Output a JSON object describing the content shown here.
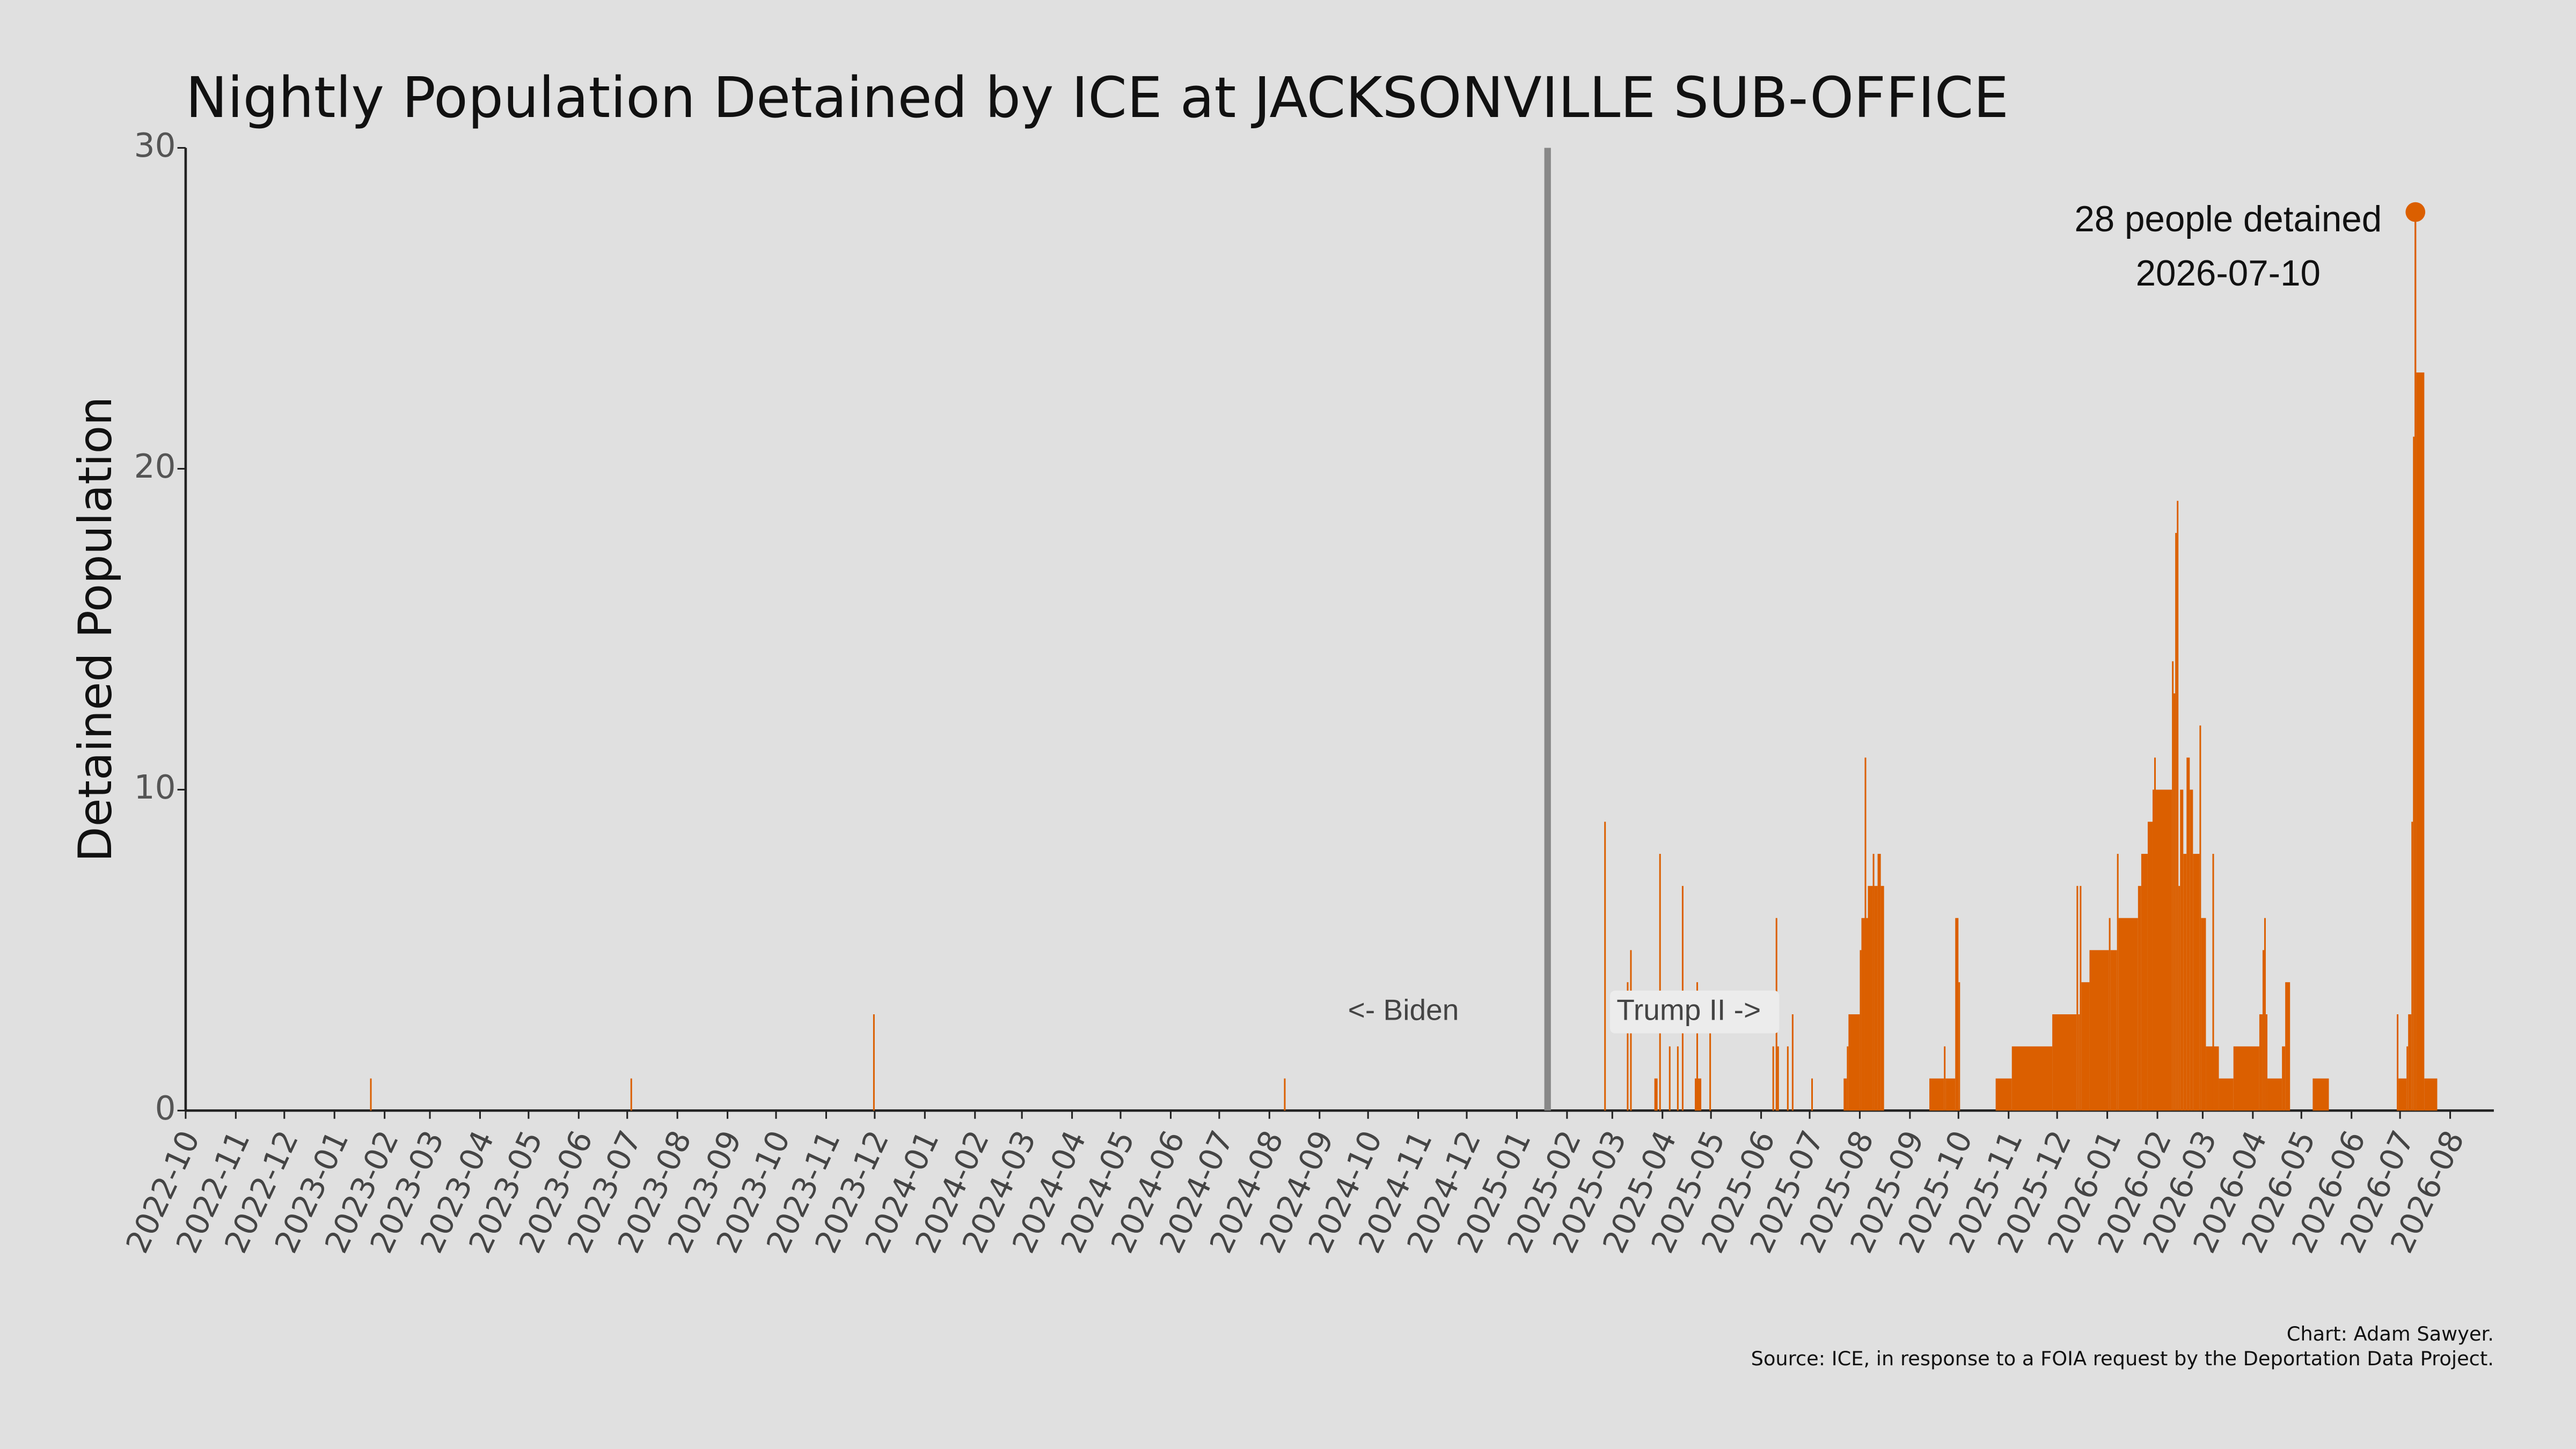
{
  "chart_data": {
    "type": "step",
    "title": "Nightly Population Detained by ICE at JACKSONVILLE SUB-OFFICE",
    "y_label": "Detained Population",
    "color": "#db5f00",
    "x": [
      "2023-01-23",
      "2023-01-24",
      "2023-07-03",
      "2023-07-04",
      "2023-11-30",
      "2023-12-01",
      "2024-08-10",
      "2024-08-11",
      "2025-02-24",
      "2025-02-25",
      "2025-03-10",
      "2025-03-11",
      "2025-03-12",
      "2025-03-13",
      "2025-03-27",
      "2025-03-29",
      "2025-03-30",
      "2025-03-31",
      "2025-04-05",
      "2025-04-06",
      "2025-04-10",
      "2025-04-11",
      "2025-04-13",
      "2025-04-14",
      "2025-04-21",
      "2025-04-22",
      "2025-04-23",
      "2025-04-25",
      "2025-04-30",
      "2025-05-01",
      "2025-06-08",
      "2025-06-09",
      "2025-06-10",
      "2025-06-11",
      "2025-06-12",
      "2025-06-17",
      "2025-06-18",
      "2025-06-20",
      "2025-06-21",
      "2025-07-02",
      "2025-07-03",
      "2025-07-22",
      "2025-07-24",
      "2025-07-25",
      "2025-08-01",
      "2025-08-02",
      "2025-08-04",
      "2025-08-05",
      "2025-08-06",
      "2025-08-09",
      "2025-08-10",
      "2025-08-12",
      "2025-08-14",
      "2025-08-16",
      "2025-09-13",
      "2025-09-22",
      "2025-09-23",
      "2025-09-29",
      "2025-10-01",
      "2025-10-02",
      "2025-10-24",
      "2025-11-03",
      "2025-11-28",
      "2025-12-13",
      "2025-12-14",
      "2025-12-15",
      "2025-12-16",
      "2025-12-21",
      "2026-01-02",
      "2026-01-03",
      "2026-01-07",
      "2026-01-08",
      "2026-01-20",
      "2026-01-22",
      "2026-01-26",
      "2026-01-29",
      "2026-01-30",
      "2026-01-31",
      "2026-02-10",
      "2026-02-11",
      "2026-02-12",
      "2026-02-13",
      "2026-02-14",
      "2026-02-15",
      "2026-02-17",
      "2026-02-19",
      "2026-02-21",
      "2026-02-23",
      "2026-02-27",
      "2026-02-28",
      "2026-03-03",
      "2026-03-07",
      "2026-03-08",
      "2026-03-11",
      "2026-03-20",
      "2026-04-05",
      "2026-04-07",
      "2026-04-08",
      "2026-04-09",
      "2026-04-10",
      "2026-04-19",
      "2026-04-21",
      "2026-04-24",
      "2026-05-08",
      "2026-05-18",
      "2026-06-29",
      "2026-06-30",
      "2026-07-05",
      "2026-07-06",
      "2026-07-08",
      "2026-07-09",
      "2026-07-10",
      "2026-07-11",
      "2026-07-16",
      "2026-07-24"
    ],
    "values": [
      1,
      0,
      1,
      0,
      3,
      0,
      1,
      0,
      9,
      0,
      4,
      0,
      5,
      0,
      1,
      0,
      8,
      0,
      2,
      0,
      2,
      0,
      7,
      0,
      1,
      4,
      1,
      0,
      3,
      0,
      2,
      0,
      6,
      2,
      0,
      2,
      0,
      3,
      0,
      1,
      0,
      1,
      2,
      3,
      5,
      6,
      11,
      6,
      7,
      8,
      7,
      8,
      7,
      0,
      1,
      2,
      1,
      6,
      4,
      0,
      1,
      2,
      3,
      7,
      3,
      7,
      4,
      5,
      6,
      5,
      8,
      6,
      7,
      8,
      9,
      10,
      11,
      10,
      14,
      13,
      18,
      19,
      7,
      10,
      8,
      11,
      10,
      8,
      12,
      6,
      2,
      8,
      2,
      1,
      2,
      3,
      5,
      6,
      3,
      1,
      2,
      4,
      0,
      1,
      0,
      3,
      1,
      2,
      3,
      9,
      21,
      28,
      23,
      1,
      0
    ],
    "xlim": [
      "2022-10-01",
      "2026-08-28"
    ],
    "xticks": [
      {
        "value": "2022-10-01",
        "label": "2022-10"
      },
      {
        "value": "2022-11-01",
        "label": "2022-11"
      },
      {
        "value": "2022-12-01",
        "label": "2022-12"
      },
      {
        "value": "2023-01-01",
        "label": "2023-01"
      },
      {
        "value": "2023-02-01",
        "label": "2023-02"
      },
      {
        "value": "2023-03-01",
        "label": "2023-03"
      },
      {
        "value": "2023-04-01",
        "label": "2023-04"
      },
      {
        "value": "2023-05-01",
        "label": "2023-05"
      },
      {
        "value": "2023-06-01",
        "label": "2023-06"
      },
      {
        "value": "2023-07-01",
        "label": "2023-07"
      },
      {
        "value": "2023-08-01",
        "label": "2023-08"
      },
      {
        "value": "2023-09-01",
        "label": "2023-09"
      },
      {
        "value": "2023-10-01",
        "label": "2023-10"
      },
      {
        "value": "2023-11-01",
        "label": "2023-11"
      },
      {
        "value": "2023-12-01",
        "label": "2023-12"
      },
      {
        "value": "2024-01-01",
        "label": "2024-01"
      },
      {
        "value": "2024-02-01",
        "label": "2024-02"
      },
      {
        "value": "2024-03-01",
        "label": "2024-03"
      },
      {
        "value": "2024-04-01",
        "label": "2024-04"
      },
      {
        "value": "2024-05-01",
        "label": "2024-05"
      },
      {
        "value": "2024-06-01",
        "label": "2024-06"
      },
      {
        "value": "2024-07-01",
        "label": "2024-07"
      },
      {
        "value": "2024-08-01",
        "label": "2024-08"
      },
      {
        "value": "2024-09-01",
        "label": "2024-09"
      },
      {
        "value": "2024-10-01",
        "label": "2024-10"
      },
      {
        "value": "2024-11-01",
        "label": "2024-11"
      },
      {
        "value": "2024-12-01",
        "label": "2024-12"
      },
      {
        "value": "2025-01-01",
        "label": "2025-01"
      },
      {
        "value": "2025-02-01",
        "label": "2025-02"
      },
      {
        "value": "2025-03-01",
        "label": "2025-03"
      },
      {
        "value": "2025-04-01",
        "label": "2025-04"
      },
      {
        "value": "2025-05-01",
        "label": "2025-05"
      },
      {
        "value": "2025-06-01",
        "label": "2025-06"
      },
      {
        "value": "2025-07-01",
        "label": "2025-07"
      },
      {
        "value": "2025-08-01",
        "label": "2025-08"
      },
      {
        "value": "2025-09-01",
        "label": "2025-09"
      },
      {
        "value": "2025-10-01",
        "label": "2025-10"
      },
      {
        "value": "2025-11-01",
        "label": "2025-11"
      },
      {
        "value": "2025-12-01",
        "label": "2025-12"
      },
      {
        "value": "2026-01-01",
        "label": "2026-01"
      },
      {
        "value": "2026-02-01",
        "label": "2026-02"
      },
      {
        "value": "2026-03-01",
        "label": "2026-03"
      },
      {
        "value": "2026-04-01",
        "label": "2026-04"
      },
      {
        "value": "2026-05-01",
        "label": "2026-05"
      },
      {
        "value": "2026-06-01",
        "label": "2026-06"
      },
      {
        "value": "2026-07-01",
        "label": "2026-07"
      },
      {
        "value": "2026-08-01",
        "label": "2026-08"
      }
    ],
    "ylim": [
      0,
      30
    ],
    "yticks": [
      0,
      10,
      20,
      30
    ],
    "divider": {
      "date": "2025-01-20",
      "left_label": "<- Biden",
      "right_label": "Trump II ->"
    },
    "annotation": {
      "text": "28 people detained",
      "date": "2026-07-10",
      "value": 28
    },
    "credit": "Chart: Adam Sawyer.",
    "source": "Source: ICE, in response to a FOIA request by the Deportation Data Project."
  }
}
